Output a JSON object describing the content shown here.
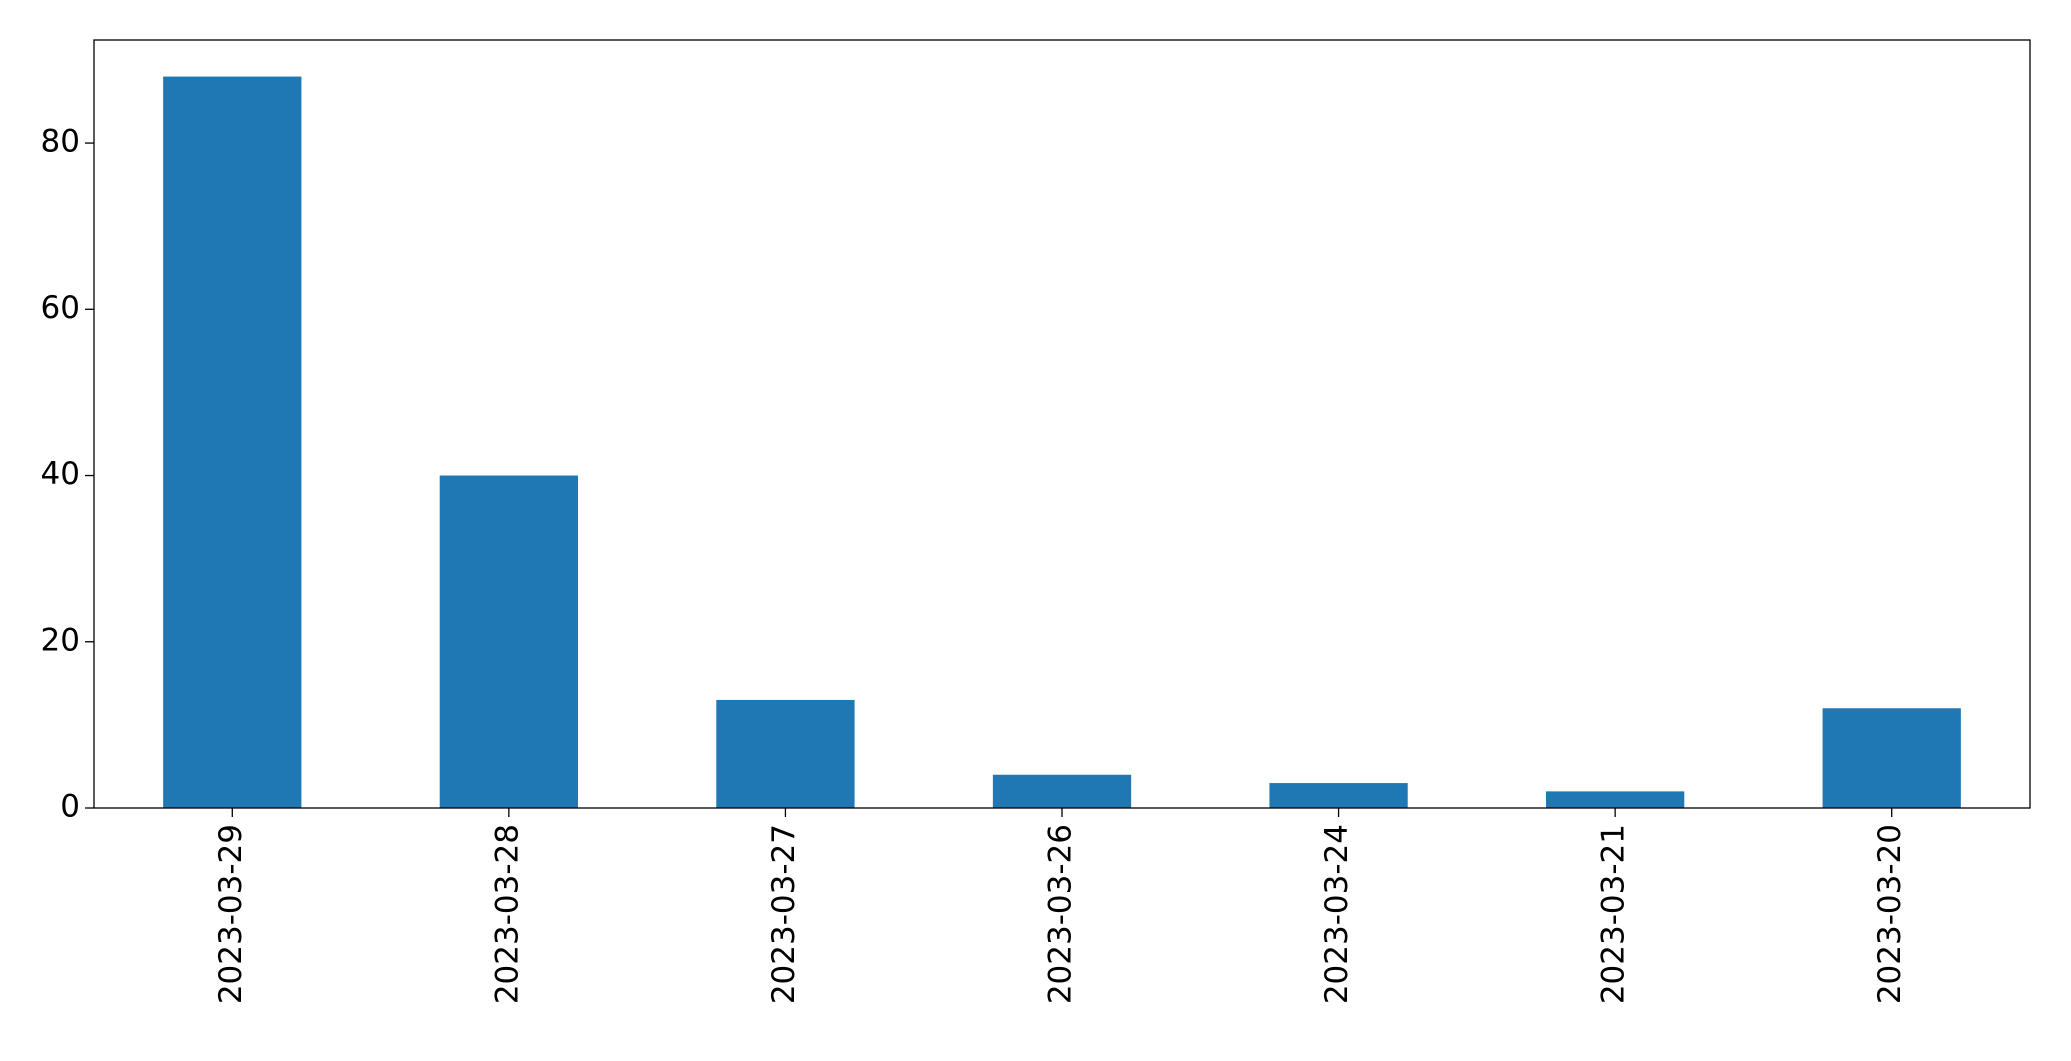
{
  "chart_data": {
    "type": "bar",
    "categories": [
      "2023-03-29",
      "2023-03-28",
      "2023-03-27",
      "2023-03-26",
      "2023-03-24",
      "2023-03-21",
      "2023-03-20"
    ],
    "values": [
      88,
      40,
      13,
      4,
      3,
      2,
      12
    ],
    "color": "#1f77b4",
    "ylim": [
      0,
      92.4
    ],
    "yticks": [
      0,
      20,
      40,
      60,
      80
    ],
    "grid": false
  }
}
